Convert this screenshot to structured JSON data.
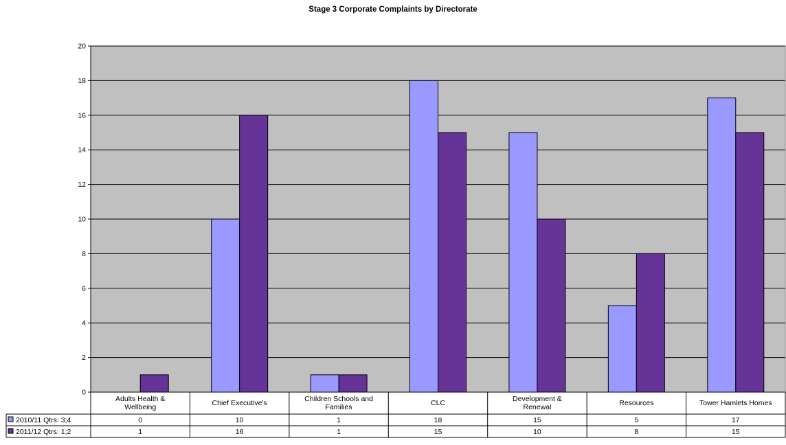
{
  "chart_data": {
    "type": "bar",
    "title": "Stage 3 Corporate Complaints by Directorate",
    "categories": [
      [
        "Adults Health &",
        "Wellbeing"
      ],
      [
        "Chief Executive's"
      ],
      [
        "Children Schools and",
        "Families"
      ],
      [
        "CLC"
      ],
      [
        "Development &",
        "Renewal"
      ],
      [
        "Resources"
      ],
      [
        "Tower Hamlets Homes"
      ]
    ],
    "series": [
      {
        "name": "2010/11  Qtrs: 3;4",
        "values": [
          0,
          10,
          1,
          18,
          15,
          5,
          17
        ],
        "color": "#9999ff"
      },
      {
        "name": "2011/12  Qtrs: 1;2",
        "values": [
          1,
          16,
          1,
          15,
          10,
          8,
          15
        ],
        "color": "#663399"
      }
    ],
    "ylim": [
      0,
      20
    ],
    "yticks": [
      0,
      2,
      4,
      6,
      8,
      10,
      12,
      14,
      16,
      18,
      20
    ],
    "plot_background": "#c0c0c0",
    "grid": true,
    "legend": "data-table"
  }
}
